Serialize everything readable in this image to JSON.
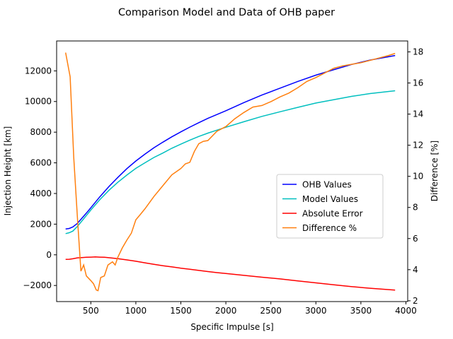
{
  "chart_data": {
    "type": "line",
    "title": "Comparison Model and Data of OHB paper",
    "xlabel": "Specific Impulse [s]",
    "ylabel_left": "Injection Height [km]",
    "ylabel_right": "Difference [%]",
    "xlim": [
      120,
      4020
    ],
    "ylim_left": [
      -3050,
      13950
    ],
    "ylim_right": [
      1.95,
      18.7
    ],
    "x_ticks": [
      500,
      1000,
      1500,
      2000,
      2500,
      3000,
      3500,
      4000
    ],
    "x_tick_labels": [
      "500",
      "1000",
      "1500",
      "2000",
      "2500",
      "3000",
      "3500",
      "4000"
    ],
    "y_left_ticks": [
      -2000,
      0,
      2000,
      4000,
      6000,
      8000,
      10000,
      12000
    ],
    "y_left_tick_labels": [
      "−2000",
      "0",
      "2000",
      "4000",
      "6000",
      "8000",
      "10000",
      "12000"
    ],
    "y_right_ticks": [
      2,
      4,
      6,
      8,
      10,
      12,
      14,
      16,
      18
    ],
    "y_right_tick_labels": [
      "2",
      "4",
      "6",
      "8",
      "10",
      "12",
      "14",
      "16",
      "18"
    ],
    "grid": false,
    "legend_position": "center-right",
    "series": [
      {
        "name": "OHB Values",
        "axis": "left",
        "color": "#0000ff",
        "points": [
          [
            220,
            1680
          ],
          [
            260,
            1720
          ],
          [
            300,
            1820
          ],
          [
            350,
            2050
          ],
          [
            400,
            2380
          ],
          [
            450,
            2720
          ],
          [
            500,
            3070
          ],
          [
            600,
            3780
          ],
          [
            700,
            4450
          ],
          [
            800,
            5050
          ],
          [
            900,
            5620
          ],
          [
            1000,
            6120
          ],
          [
            1100,
            6560
          ],
          [
            1200,
            6980
          ],
          [
            1300,
            7350
          ],
          [
            1400,
            7700
          ],
          [
            1500,
            8020
          ],
          [
            1600,
            8330
          ],
          [
            1700,
            8620
          ],
          [
            1800,
            8900
          ],
          [
            1900,
            9150
          ],
          [
            2000,
            9400
          ],
          [
            2200,
            9930
          ],
          [
            2400,
            10420
          ],
          [
            2600,
            10870
          ],
          [
            2800,
            11310
          ],
          [
            3000,
            11720
          ],
          [
            3200,
            12080
          ],
          [
            3400,
            12420
          ],
          [
            3600,
            12700
          ],
          [
            3880,
            13000
          ]
        ]
      },
      {
        "name": "Model Values",
        "axis": "left",
        "color": "#00bfbf",
        "points": [
          [
            220,
            1380
          ],
          [
            260,
            1440
          ],
          [
            300,
            1550
          ],
          [
            350,
            1850
          ],
          [
            400,
            2200
          ],
          [
            450,
            2560
          ],
          [
            500,
            2920
          ],
          [
            600,
            3600
          ],
          [
            700,
            4200
          ],
          [
            800,
            4730
          ],
          [
            900,
            5200
          ],
          [
            1000,
            5640
          ],
          [
            1100,
            6000
          ],
          [
            1200,
            6350
          ],
          [
            1300,
            6640
          ],
          [
            1400,
            6950
          ],
          [
            1500,
            7220
          ],
          [
            1600,
            7480
          ],
          [
            1700,
            7720
          ],
          [
            1800,
            7940
          ],
          [
            1900,
            8130
          ],
          [
            2000,
            8320
          ],
          [
            2200,
            8680
          ],
          [
            2400,
            9030
          ],
          [
            2600,
            9330
          ],
          [
            2800,
            9620
          ],
          [
            3000,
            9900
          ],
          [
            3200,
            10120
          ],
          [
            3400,
            10340
          ],
          [
            3600,
            10520
          ],
          [
            3880,
            10700
          ]
        ]
      },
      {
        "name": "Absolute Error",
        "axis": "left",
        "color": "#ff0000",
        "points": [
          [
            220,
            -300
          ],
          [
            260,
            -290
          ],
          [
            300,
            -260
          ],
          [
            350,
            -200
          ],
          [
            400,
            -180
          ],
          [
            450,
            -160
          ],
          [
            500,
            -150
          ],
          [
            550,
            -140
          ],
          [
            600,
            -150
          ],
          [
            650,
            -160
          ],
          [
            700,
            -190
          ],
          [
            800,
            -250
          ],
          [
            900,
            -330
          ],
          [
            1000,
            -420
          ],
          [
            1100,
            -520
          ],
          [
            1200,
            -620
          ],
          [
            1300,
            -710
          ],
          [
            1400,
            -790
          ],
          [
            1500,
            -870
          ],
          [
            1600,
            -940
          ],
          [
            1700,
            -1020
          ],
          [
            1800,
            -1090
          ],
          [
            1900,
            -1160
          ],
          [
            2000,
            -1220
          ],
          [
            2200,
            -1340
          ],
          [
            2400,
            -1460
          ],
          [
            2600,
            -1570
          ],
          [
            2800,
            -1700
          ],
          [
            3000,
            -1830
          ],
          [
            3200,
            -1960
          ],
          [
            3400,
            -2080
          ],
          [
            3600,
            -2180
          ],
          [
            3880,
            -2300
          ]
        ]
      },
      {
        "name": "Difference %",
        "axis": "right",
        "color": "#ff7f0e",
        "points": [
          [
            220,
            17.95
          ],
          [
            270,
            16.4
          ],
          [
            310,
            11.2
          ],
          [
            350,
            7.4
          ],
          [
            390,
            3.9
          ],
          [
            420,
            4.3
          ],
          [
            450,
            3.6
          ],
          [
            500,
            3.3
          ],
          [
            530,
            3.1
          ],
          [
            560,
            2.7
          ],
          [
            580,
            2.65
          ],
          [
            610,
            3.5
          ],
          [
            650,
            3.6
          ],
          [
            690,
            4.3
          ],
          [
            740,
            4.5
          ],
          [
            770,
            4.3
          ],
          [
            800,
            4.8
          ],
          [
            850,
            5.4
          ],
          [
            900,
            5.9
          ],
          [
            950,
            6.35
          ],
          [
            1000,
            7.2
          ],
          [
            1050,
            7.55
          ],
          [
            1100,
            7.9
          ],
          [
            1200,
            8.7
          ],
          [
            1300,
            9.4
          ],
          [
            1400,
            10.1
          ],
          [
            1500,
            10.5
          ],
          [
            1550,
            10.8
          ],
          [
            1600,
            10.9
          ],
          [
            1650,
            11.6
          ],
          [
            1700,
            12.1
          ],
          [
            1750,
            12.25
          ],
          [
            1800,
            12.3
          ],
          [
            1900,
            12.9
          ],
          [
            2000,
            13.2
          ],
          [
            2100,
            13.7
          ],
          [
            2200,
            14.1
          ],
          [
            2300,
            14.45
          ],
          [
            2400,
            14.55
          ],
          [
            2500,
            14.8
          ],
          [
            2600,
            15.1
          ],
          [
            2700,
            15.35
          ],
          [
            2800,
            15.7
          ],
          [
            2900,
            16.1
          ],
          [
            3000,
            16.35
          ],
          [
            3100,
            16.65
          ],
          [
            3200,
            16.95
          ],
          [
            3300,
            17.1
          ],
          [
            3400,
            17.2
          ],
          [
            3500,
            17.3
          ],
          [
            3600,
            17.45
          ],
          [
            3700,
            17.6
          ],
          [
            3800,
            17.75
          ],
          [
            3880,
            17.9
          ]
        ]
      }
    ]
  }
}
